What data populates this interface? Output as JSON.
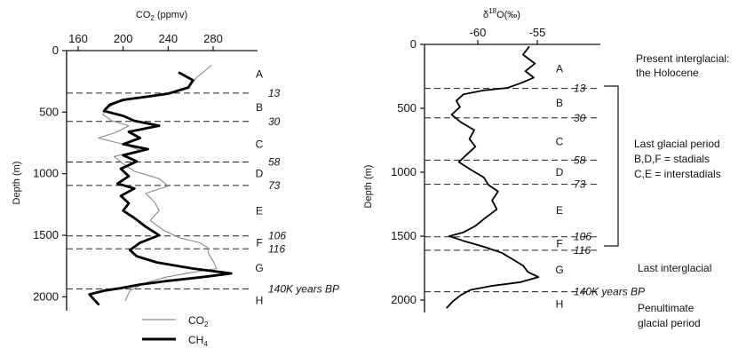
{
  "chart_data": [
    {
      "type": "line",
      "orientation": "depth-profile",
      "x_axis_position": "top",
      "title": "",
      "xlabel": "CO2 (ppmv)",
      "xlabel_main": "CO",
      "xlabel_sub": "2",
      "xlabel_unit": " (ppmv)",
      "ylabel": "Depth (m)",
      "xlim": [
        150,
        310
      ],
      "ylim": [
        0,
        2080
      ],
      "x_ticks": [
        160,
        200,
        240,
        280
      ],
      "y_ticks": [
        0,
        500,
        1000,
        1500,
        2000
      ],
      "grid": false,
      "legend_position": "bottom",
      "legend": [
        {
          "label_main": "CO",
          "label_sub": "2",
          "style": "thin-grey"
        },
        {
          "label_main": "CH",
          "label_sub": "4",
          "style": "thick-black"
        }
      ],
      "series": [
        {
          "name": "CO2",
          "points": [
            [
              278,
              120
            ],
            [
              272,
              170
            ],
            [
              265,
              220
            ],
            [
              262,
              260
            ],
            [
              256,
              300
            ],
            [
              245,
              335
            ],
            [
              230,
              360
            ],
            [
              210,
              385
            ],
            [
              195,
              420
            ],
            [
              185,
              470
            ],
            [
              182,
              520
            ],
            [
              190,
              570
            ],
            [
              205,
              610
            ],
            [
              195,
              660
            ],
            [
              178,
              710
            ],
            [
              200,
              760
            ],
            [
              215,
              810
            ],
            [
              192,
              860
            ],
            [
              200,
              920
            ],
            [
              210,
              980
            ],
            [
              232,
              1040
            ],
            [
              240,
              1100
            ],
            [
              220,
              1160
            ],
            [
              228,
              1230
            ],
            [
              232,
              1300
            ],
            [
              224,
              1380
            ],
            [
              236,
              1460
            ],
            [
              250,
              1520
            ],
            [
              268,
              1560
            ],
            [
              275,
              1600
            ],
            [
              276,
              1650
            ],
            [
              280,
              1710
            ],
            [
              283,
              1770
            ],
            [
              262,
              1800
            ],
            [
              238,
              1840
            ],
            [
              222,
              1880
            ],
            [
              212,
              1920
            ],
            [
              206,
              1950
            ],
            [
              204,
              1990
            ],
            [
              202,
              2030
            ]
          ]
        },
        {
          "name": "CH4",
          "points": [
            [
              250,
              180
            ],
            [
              262,
              240
            ],
            [
              258,
              300
            ],
            [
              240,
              350
            ],
            [
              225,
              370
            ],
            [
              200,
              400
            ],
            [
              188,
              440
            ],
            [
              183,
              490
            ],
            [
              200,
              530
            ],
            [
              210,
              570
            ],
            [
              232,
              610
            ],
            [
              205,
              660
            ],
            [
              215,
              710
            ],
            [
              200,
              760
            ],
            [
              222,
              800
            ],
            [
              200,
              850
            ],
            [
              212,
              900
            ],
            [
              198,
              960
            ],
            [
              205,
              1020
            ],
            [
              195,
              1080
            ],
            [
              210,
              1120
            ],
            [
              198,
              1180
            ],
            [
              205,
              1240
            ],
            [
              200,
              1300
            ],
            [
              210,
              1360
            ],
            [
              220,
              1430
            ],
            [
              232,
              1500
            ],
            [
              215,
              1560
            ],
            [
              206,
              1620
            ],
            [
              212,
              1670
            ],
            [
              230,
              1720
            ],
            [
              262,
              1770
            ],
            [
              296,
              1810
            ],
            [
              270,
              1840
            ],
            [
              240,
              1870
            ],
            [
              215,
              1900
            ],
            [
              197,
              1930
            ],
            [
              183,
              1950
            ],
            [
              170,
              1980
            ],
            [
              174,
              2020
            ],
            [
              178,
              2060
            ]
          ]
        }
      ]
    },
    {
      "type": "line",
      "orientation": "depth-profile",
      "x_axis_position": "top",
      "title": "",
      "xlabel": "δ18O(‰)",
      "xlabel_main": "δ",
      "xlabel_sup": "18",
      "xlabel_unit": "O(‰)",
      "ylabel": "Depth (m)",
      "xlim": [
        -64,
        -53
      ],
      "ylim": [
        0,
        2080
      ],
      "x_ticks": [
        -60,
        -55
      ],
      "y_ticks": [
        0,
        500,
        1000,
        1500,
        2000
      ],
      "grid": false,
      "series": [
        {
          "name": "",
          "points": [
            [
              -55.7,
              20
            ],
            [
              -56.2,
              80
            ],
            [
              -55.2,
              150
            ],
            [
              -56.0,
              210
            ],
            [
              -55.3,
              260
            ],
            [
              -56.3,
              300
            ],
            [
              -57.5,
              340
            ],
            [
              -59.5,
              360
            ],
            [
              -61.2,
              390
            ],
            [
              -61.8,
              440
            ],
            [
              -61.5,
              490
            ],
            [
              -62.2,
              550
            ],
            [
              -61.4,
              610
            ],
            [
              -60.3,
              670
            ],
            [
              -60.7,
              740
            ],
            [
              -60.2,
              800
            ],
            [
              -60.9,
              860
            ],
            [
              -61.6,
              920
            ],
            [
              -60.6,
              980
            ],
            [
              -59.5,
              1040
            ],
            [
              -59.1,
              1100
            ],
            [
              -58.3,
              1150
            ],
            [
              -58.8,
              1220
            ],
            [
              -58.4,
              1290
            ],
            [
              -59.4,
              1360
            ],
            [
              -60.2,
              1420
            ],
            [
              -61.2,
              1470
            ],
            [
              -62.4,
              1500
            ],
            [
              -61.1,
              1540
            ],
            [
              -59.6,
              1580
            ],
            [
              -58.0,
              1630
            ],
            [
              -57.1,
              1680
            ],
            [
              -56.2,
              1730
            ],
            [
              -55.8,
              1780
            ],
            [
              -54.9,
              1820
            ],
            [
              -56.4,
              1860
            ],
            [
              -58.9,
              1890
            ],
            [
              -60.6,
              1920
            ],
            [
              -61.4,
              1960
            ],
            [
              -62.1,
              2010
            ],
            [
              -62.6,
              2060
            ]
          ]
        }
      ]
    }
  ],
  "boundaries": [
    {
      "depth": 345,
      "label": "13",
      "extra": ""
    },
    {
      "depth": 575,
      "label": "30",
      "extra": ""
    },
    {
      "depth": 905,
      "label": "58",
      "extra": ""
    },
    {
      "depth": 1095,
      "label": "73",
      "extra": ""
    },
    {
      "depth": 1505,
      "label": "106",
      "extra": ""
    },
    {
      "depth": 1610,
      "label": "116",
      "extra": ""
    },
    {
      "depth": 1935,
      "label": "140K",
      "extra": " years BP"
    }
  ],
  "zones": [
    {
      "label": "A",
      "depth": 190
    },
    {
      "label": "B",
      "depth": 460
    },
    {
      "label": "C",
      "depth": 760
    },
    {
      "label": "D",
      "depth": 1000
    },
    {
      "label": "E",
      "depth": 1300
    },
    {
      "label": "F",
      "depth": 1560
    },
    {
      "label": "G",
      "depth": 1765
    },
    {
      "label": "H",
      "depth": 2030
    }
  ],
  "period_notes": {
    "holocene_1": "Present interglacial:",
    "holocene_2": "the Holocene",
    "glacial_1": "Last glacial period",
    "glacial_2": "B,D,F = stadials",
    "glacial_3": "C,E = interstadials",
    "last_interglacial": "Last interglacial",
    "penultimate_1": "Penultimate",
    "penultimate_2": "glacial period"
  }
}
